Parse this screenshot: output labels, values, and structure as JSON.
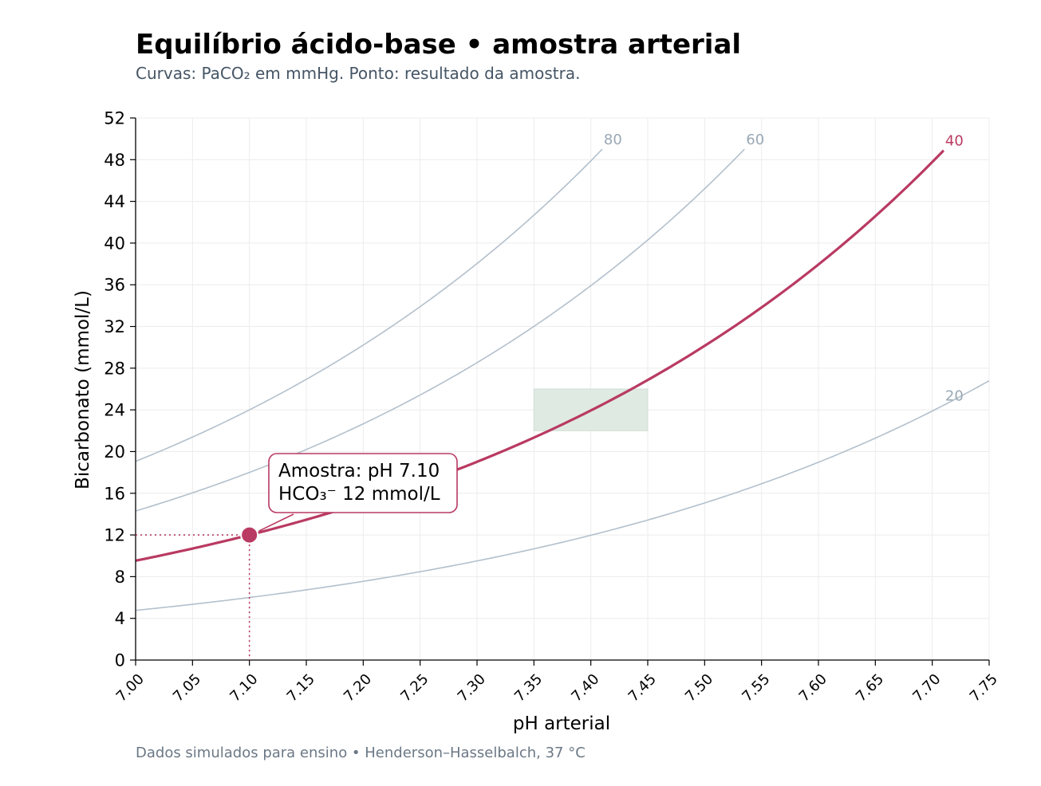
{
  "title": "Equilíbrio ácido-base • amostra arterial",
  "subtitle": "Curvas: PaCO₂ em mmHg. Ponto: resultado da amostra.",
  "footer": "Dados simulados para ensino • Henderson–Hasselbalch, 37 °C",
  "chart_data": {
    "type": "line",
    "xlabel": "pH arterial",
    "ylabel": "Bicarbonato (mmol/L)",
    "xlim": [
      7.0,
      7.75
    ],
    "ylim": [
      0,
      52
    ],
    "x_ticks": [
      "7.00",
      "7.05",
      "7.10",
      "7.15",
      "7.20",
      "7.25",
      "7.30",
      "7.35",
      "7.40",
      "7.45",
      "7.50",
      "7.55",
      "7.60",
      "7.65",
      "7.70",
      "7.75"
    ],
    "y_ticks": [
      "0",
      "4",
      "8",
      "12",
      "16",
      "20",
      "24",
      "28",
      "32",
      "36",
      "40",
      "44",
      "48",
      "52"
    ],
    "grid": true,
    "isopleths": [
      {
        "label": "80",
        "paco2": 80,
        "x_end": 7.41,
        "highlight": false,
        "color": "#b3c0cc",
        "label_color": "#9aa8b5"
      },
      {
        "label": "60",
        "paco2": 60,
        "x_end": 7.535,
        "highlight": false,
        "color": "#b3c0cc",
        "label_color": "#9aa8b5"
      },
      {
        "label": "40",
        "paco2": 40,
        "x_end": 7.71,
        "highlight": true,
        "color": "#b93a62",
        "label_color": "#b93a62"
      },
      {
        "label": "20",
        "paco2": 20,
        "x_end": 7.75,
        "label_x": 7.71,
        "highlight": false,
        "color": "#b3c0cc",
        "label_color": "#9aa8b5"
      }
    ],
    "normal_range": {
      "ph": [
        7.35,
        7.45
      ],
      "hco3": [
        22,
        26
      ],
      "color": "#dfeae3"
    },
    "sample": {
      "ph": 7.1,
      "hco3": 12,
      "color": "#b93a62"
    },
    "annotation": {
      "line1": "Amostra: pH 7.10",
      "line2": "HCO₃⁻ 12 mmol/L"
    }
  }
}
